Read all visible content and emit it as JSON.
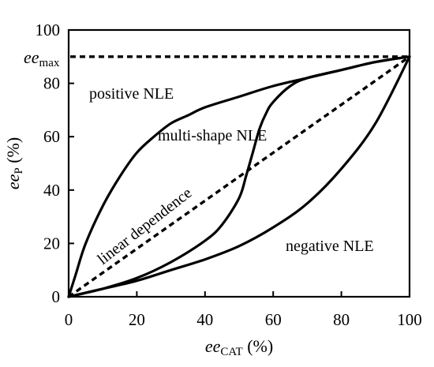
{
  "chart_data": {
    "type": "line",
    "xlabel": {
      "main": "ee",
      "sub": "CAT",
      "unit": " (%)"
    },
    "ylabel": {
      "main": "ee",
      "sub": "P",
      "unit": " (%)"
    },
    "xlim": [
      0,
      100
    ],
    "ylim": [
      0,
      100
    ],
    "xticks": [
      "0",
      "20",
      "40",
      "60",
      "80",
      "100"
    ],
    "yticks": [
      "0",
      "20",
      "40",
      "60",
      "80",
      "100"
    ],
    "grid": false,
    "ee_max": {
      "value": 90,
      "label_main": "ee",
      "label_sub": "max"
    },
    "series": [
      {
        "name": "positive NLE",
        "style": "solid",
        "x": [
          0,
          2,
          5,
          10,
          15,
          20,
          25,
          30,
          35,
          40,
          50,
          60,
          70,
          80,
          90,
          100
        ],
        "y": [
          0,
          8,
          20,
          34,
          45,
          54,
          60,
          65,
          68,
          71,
          75,
          79,
          82,
          85,
          88,
          90
        ]
      },
      {
        "name": "multi-shape NLE",
        "style": "solid",
        "x": [
          0,
          10,
          20,
          30,
          40,
          45,
          50,
          52,
          54,
          56,
          58,
          60,
          65,
          70,
          80,
          90,
          100
        ],
        "y": [
          0,
          3,
          7,
          13,
          21,
          27,
          37,
          45,
          54,
          63,
          69,
          73,
          79,
          82,
          85,
          88,
          90
        ]
      },
      {
        "name": "negative NLE",
        "style": "solid",
        "x": [
          0,
          10,
          20,
          30,
          40,
          50,
          60,
          70,
          80,
          90,
          100
        ],
        "y": [
          0,
          3,
          6,
          10,
          14,
          19,
          26,
          35,
          48,
          65,
          90
        ]
      },
      {
        "name": "linear dependence",
        "style": "dashed",
        "x": [
          0,
          100
        ],
        "y": [
          0,
          90
        ]
      }
    ]
  }
}
